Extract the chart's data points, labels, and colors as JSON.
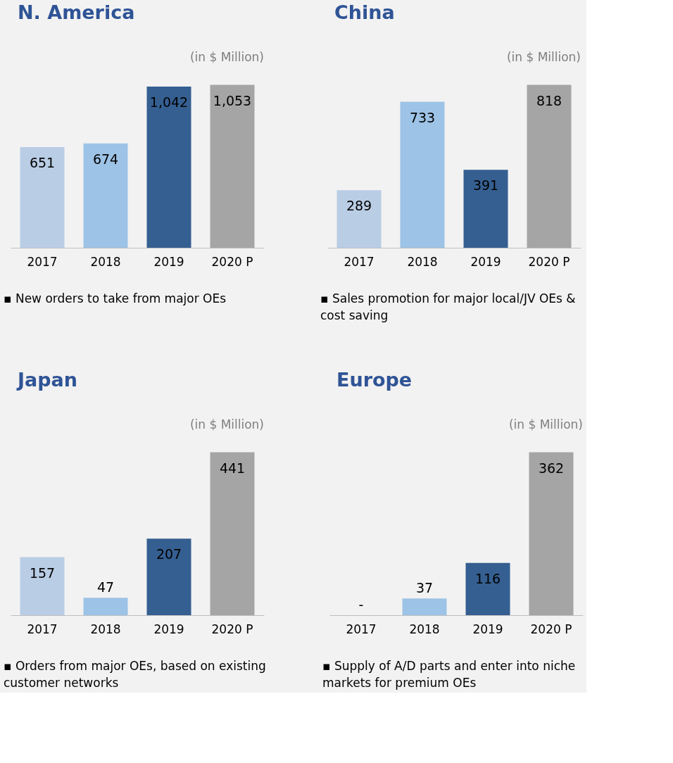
{
  "chart_data": [
    {
      "type": "bar",
      "title": "N. America",
      "subtitle": "(in $ Million)",
      "categories": [
        "2017",
        "2018",
        "2019",
        "2020 P"
      ],
      "values": [
        651,
        674,
        1042,
        1053
      ],
      "colors": [
        "#b9cde5",
        "#9dc3e6",
        "#355f91",
        "#a5a5a5"
      ],
      "value_labels": [
        "651",
        "674",
        "1,042",
        "1,053"
      ],
      "annotations": [
        "▪ New orders to take from major OEs"
      ]
    },
    {
      "type": "bar",
      "title": "China",
      "subtitle": "(in $ Million)",
      "categories": [
        "2017",
        "2018",
        "2019",
        "2020 P"
      ],
      "values": [
        289,
        733,
        391,
        818
      ],
      "colors": [
        "#b9cde5",
        "#9dc3e6",
        "#355f91",
        "#a5a5a5"
      ],
      "data_labels": true,
      "annotations": [
        "▪ Sales promotion for major local/JV OEs & cost saving"
      ]
    },
    {
      "type": "bar",
      "title": "Japan",
      "subtitle": "(in $ Million)",
      "categories": [
        "2017",
        "2018",
        "2019",
        "2020 P"
      ],
      "values": [
        157,
        47,
        207,
        441
      ],
      "colors": [
        "#b9cde5",
        "#9dc3e6",
        "#355f91",
        "#a5a5a5"
      ],
      "data_labels": true,
      "annotations": [
        "▪ Orders from major OEs, based on existing customer networks"
      ]
    },
    {
      "type": "bar",
      "title": "Europe",
      "subtitle": "(in $ Million)",
      "categories": [
        "2017",
        "2018",
        "2019",
        "2020 P"
      ],
      "values": [
        null,
        37,
        116,
        362
      ],
      "colors": [
        "#b9cde5",
        "#9dc3e6",
        "#355f91",
        "#a5a5a5"
      ],
      "value_labels": [
        "-",
        "37",
        "116",
        "362"
      ],
      "annotations": [
        "▪ Supply of A/D parts and enter into niche markets for premium OEs"
      ]
    }
  ]
}
